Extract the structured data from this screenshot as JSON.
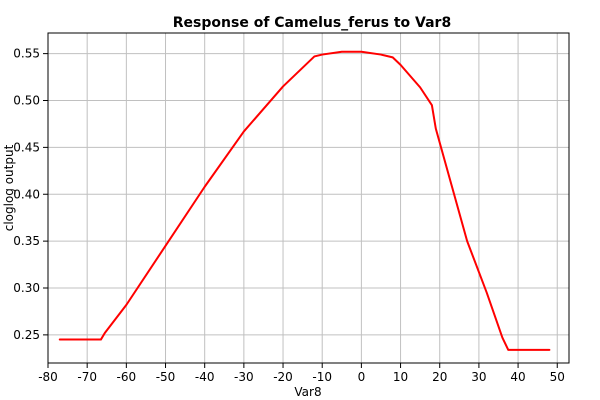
{
  "chart_data": {
    "type": "line",
    "title": "Response of Camelus_ferus to Var8",
    "xlabel": "Var8",
    "ylabel": "cloglog output",
    "xlim": [
      -80,
      53
    ],
    "ylim": [
      0.22,
      0.572
    ],
    "xticks": [
      -80,
      -70,
      -60,
      -50,
      -40,
      -30,
      -20,
      -10,
      0,
      10,
      20,
      30,
      40,
      50
    ],
    "yticks": [
      0.25,
      0.3,
      0.35,
      0.4,
      0.45,
      0.5,
      0.55
    ],
    "ytick_labels": [
      "0.25",
      "0.30",
      "0.35",
      "0.40",
      "0.45",
      "0.50",
      "0.55"
    ],
    "grid": true,
    "series": [
      {
        "color": "#ff0000",
        "x": [
          -77,
          -66.5,
          -65.5,
          -60,
          -50,
          -40,
          -30,
          -20,
          -12,
          -10,
          -5,
          0,
          5,
          8,
          10,
          15,
          18,
          19,
          23,
          27,
          32,
          36,
          37.5,
          48
        ],
        "y": [
          0.245,
          0.245,
          0.252,
          0.282,
          0.345,
          0.408,
          0.467,
          0.515,
          0.547,
          0.549,
          0.552,
          0.552,
          0.549,
          0.546,
          0.538,
          0.514,
          0.495,
          0.47,
          0.41,
          0.35,
          0.295,
          0.247,
          0.234,
          0.234
        ]
      }
    ]
  }
}
